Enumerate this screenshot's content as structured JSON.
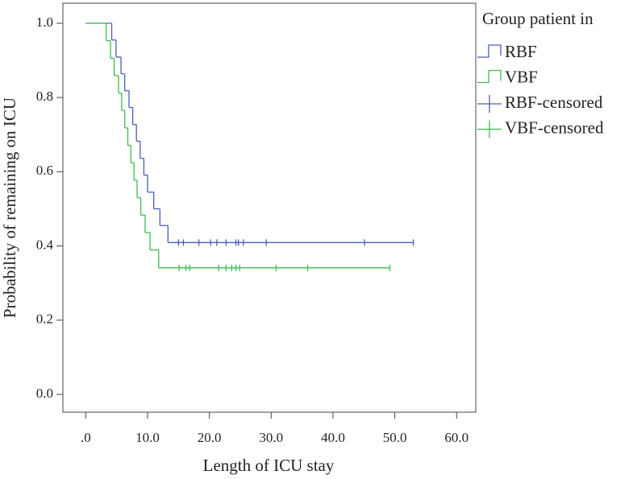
{
  "chart_data": {
    "type": "step",
    "x_label": "Length of ICU stay",
    "y_label": "Probability of remaining on ICU",
    "legend_title": "Group patient in",
    "legend": "right",
    "xlim": [
      -3.7,
      63.1
    ],
    "ylim": [
      -0.048,
      1.054
    ],
    "xticks": [
      {
        "value": 0,
        "label": ".0"
      },
      {
        "value": 10,
        "label": "10.0"
      },
      {
        "value": 20,
        "label": "20.0"
      },
      {
        "value": 30,
        "label": "30.0"
      },
      {
        "value": 40,
        "label": "40.0"
      },
      {
        "value": 50,
        "label": "50.0"
      },
      {
        "value": 60,
        "label": "60.0"
      }
    ],
    "yticks": [
      {
        "value": 0,
        "label": "0.0"
      },
      {
        "value": 0.2,
        "label": "0.2"
      },
      {
        "value": 0.4,
        "label": "0.4"
      },
      {
        "value": 0.6,
        "label": "0.6"
      },
      {
        "value": 0.8,
        "label": "0.8"
      },
      {
        "value": 1,
        "label": "1.0"
      }
    ],
    "series": [
      {
        "name": "RBF",
        "style": "step",
        "color": "#4a5cc0",
        "x": [
          0,
          4.2,
          4.9,
          5.7,
          6.3,
          7.0,
          7.6,
          8.2,
          8.8,
          9.4,
          10.0,
          11.0,
          12.0,
          13.3,
          53.0
        ],
        "values": [
          1.0,
          0.955,
          0.909,
          0.864,
          0.818,
          0.773,
          0.727,
          0.682,
          0.636,
          0.591,
          0.545,
          0.5,
          0.455,
          0.409,
          0.409
        ]
      },
      {
        "name": "VBF",
        "style": "step",
        "color": "#3dbd50",
        "x": [
          0,
          3.3,
          4.0,
          4.6,
          5.3,
          5.8,
          6.3,
          6.8,
          7.3,
          7.8,
          8.3,
          8.9,
          9.6,
          10.4,
          11.8,
          49.2
        ],
        "values": [
          1.0,
          0.953,
          0.906,
          0.859,
          0.812,
          0.765,
          0.718,
          0.671,
          0.624,
          0.577,
          0.53,
          0.483,
          0.436,
          0.389,
          0.341,
          0.341
        ]
      },
      {
        "name": "RBF-censored",
        "style": "censor",
        "color": "#4a5cc0",
        "x": [
          15.0,
          15.8,
          18.3,
          20.2,
          21.2,
          22.7,
          24.3,
          24.7,
          25.5,
          29.2,
          45.1,
          53.0
        ],
        "values": [
          0.409,
          0.409,
          0.409,
          0.409,
          0.409,
          0.409,
          0.409,
          0.409,
          0.409,
          0.409,
          0.409,
          0.409
        ]
      },
      {
        "name": "VBF-censored",
        "style": "censor",
        "color": "#3dbd50",
        "x": [
          15.1,
          16.2,
          16.8,
          21.5,
          22.7,
          23.6,
          24.3,
          24.9,
          30.8,
          35.9,
          49.2
        ],
        "values": [
          0.341,
          0.341,
          0.341,
          0.341,
          0.341,
          0.341,
          0.341,
          0.341,
          0.341,
          0.341,
          0.341
        ]
      }
    ]
  }
}
